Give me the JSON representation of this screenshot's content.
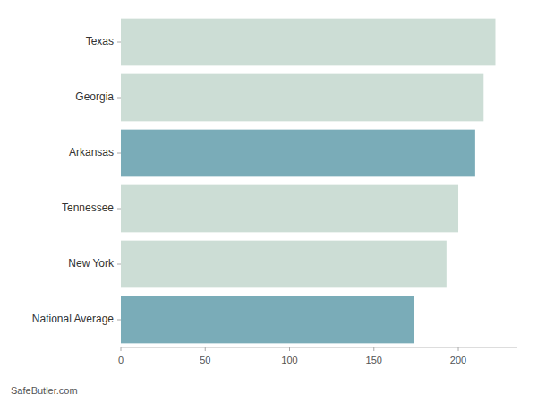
{
  "chart_data": {
    "type": "bar",
    "orientation": "horizontal",
    "categories": [
      "Texas",
      "Georgia",
      "Arkansas",
      "Tennessee",
      "New York",
      "National Average"
    ],
    "values": [
      222,
      215,
      210,
      200,
      193,
      174
    ],
    "colors": [
      "#ccddd5",
      "#ccddd5",
      "#7aacb8",
      "#ccddd5",
      "#ccddd5",
      "#7aacb8"
    ],
    "xlim": [
      0,
      235
    ],
    "xticks": [
      0,
      50,
      100,
      150,
      200
    ],
    "grid": false,
    "annotations": [
      "SafeButler.com"
    ]
  }
}
